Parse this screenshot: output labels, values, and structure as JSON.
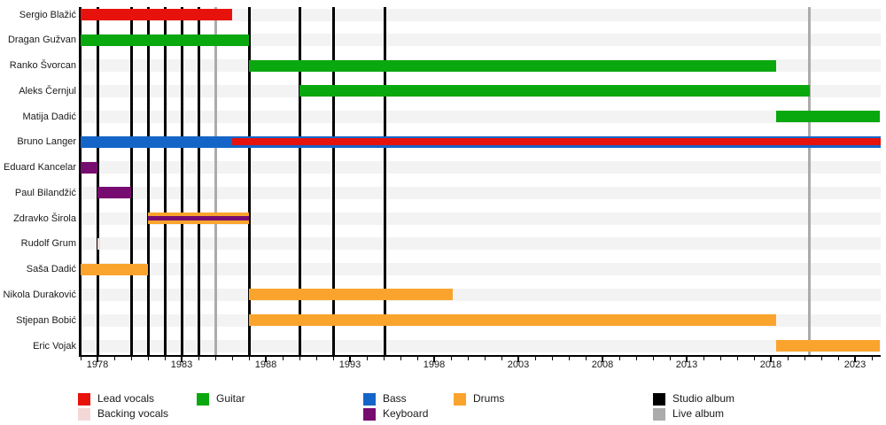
{
  "chart_data": {
    "type": "gantt-timeline",
    "description": "Band members timeline with instrument roles as horizontal bars and album releases as vertical lines",
    "x_axis": {
      "start": 1977,
      "end": 2024.5,
      "major_ticks": [
        1978,
        1983,
        1988,
        1993,
        1998,
        2003,
        2008,
        2013,
        2018,
        2023
      ],
      "minor_tick_step": 1,
      "grid": false
    },
    "roles_colors": {
      "lead_vocals": "#E8120D",
      "backing_vocals": "#F4D8D8",
      "guitar": "#0AA80F",
      "bass": "#1565C8",
      "keyboard": "#770C70",
      "drums": "#FAA42D",
      "studio_album": "#000000",
      "live_album": "#ABABAB"
    },
    "row_band_color": "#F3F3F3",
    "members": [
      {
        "name": "Sergio Blažić",
        "bars": [
          {
            "role": "lead_vocals",
            "start": 1977,
            "end": 1986
          }
        ]
      },
      {
        "name": "Dragan Gužvan",
        "bars": [
          {
            "role": "guitar",
            "start": 1977,
            "end": 1987
          }
        ]
      },
      {
        "name": "Ranko Švorcan",
        "bars": [
          {
            "role": "guitar",
            "start": 1987,
            "end": 2018.3
          }
        ]
      },
      {
        "name": "Aleks Černjul",
        "bars": [
          {
            "role": "guitar",
            "start": 1990,
            "end": 2020.3
          }
        ]
      },
      {
        "name": "Matija Dadić",
        "bars": [
          {
            "role": "guitar",
            "start": 2018.3,
            "end": 2024.5
          }
        ]
      },
      {
        "name": "Bruno Langer",
        "bars": [
          {
            "role": "bass",
            "start": 1977,
            "end": 2024.5
          },
          {
            "role": "lead_vocals",
            "start": 1986,
            "end": 2024.5,
            "overlay": true,
            "overlay_h": 8
          }
        ]
      },
      {
        "name": "Eduard Kancelar",
        "bars": [
          {
            "role": "keyboard",
            "start": 1977,
            "end": 1978
          }
        ]
      },
      {
        "name": "Paul Bilandžić",
        "bars": [
          {
            "role": "keyboard",
            "start": 1978,
            "end": 1980
          }
        ]
      },
      {
        "name": "Zdravko Širola",
        "bars": [
          {
            "role": "drums",
            "start": 1981,
            "end": 1987
          },
          {
            "role": "keyboard",
            "start": 1981,
            "end": 1987,
            "overlay": true,
            "overlay_h": 5
          }
        ]
      },
      {
        "name": "Rudolf Grum",
        "bars": [
          {
            "role": "backing_vocals",
            "start": 1978,
            "end": 1978.15
          }
        ]
      },
      {
        "name": "Saša Dadić",
        "bars": [
          {
            "role": "drums",
            "start": 1977,
            "end": 1981
          }
        ]
      },
      {
        "name": "Nikola Duraković",
        "bars": [
          {
            "role": "drums",
            "start": 1987,
            "end": 1999.1
          }
        ]
      },
      {
        "name": "Stjepan Bobić",
        "bars": [
          {
            "role": "drums",
            "start": 1987,
            "end": 2018.3
          }
        ]
      },
      {
        "name": "Eric Vojak",
        "bars": [
          {
            "role": "drums",
            "start": 2018.3,
            "end": 2024.5
          }
        ]
      }
    ],
    "album_markers": {
      "studio": [
        1978,
        1980,
        1981,
        1982,
        1983,
        1984,
        1987,
        1990,
        1992.05,
        1995.1
      ],
      "live": [
        1985,
        2020.3
      ]
    },
    "legend": [
      {
        "label": "Lead vocals",
        "role": "lead_vocals",
        "col": 0,
        "row": 0
      },
      {
        "label": "Backing vocals",
        "role": "backing_vocals",
        "col": 0,
        "row": 1
      },
      {
        "label": "Guitar",
        "role": "guitar",
        "col": 1,
        "row": 0
      },
      {
        "label": "Bass",
        "role": "bass",
        "col": 2,
        "row": 0
      },
      {
        "label": "Keyboard",
        "role": "keyboard",
        "col": 2,
        "row": 1
      },
      {
        "label": "Drums",
        "role": "drums",
        "col": 3,
        "row": 0
      },
      {
        "label": "Studio album",
        "role": "studio_album",
        "col": 4,
        "row": 0
      },
      {
        "label": "Live album",
        "role": "live_album",
        "col": 4,
        "row": 1
      }
    ]
  }
}
